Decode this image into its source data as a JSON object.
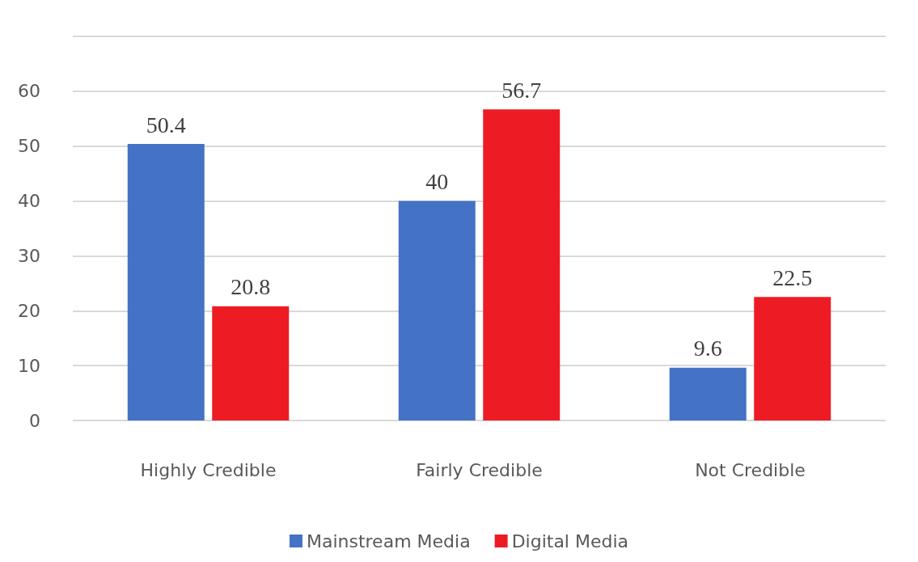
{
  "chart_data": {
    "type": "bar",
    "categories": [
      "Highly Credible",
      "Fairly Credible",
      "Not Credible"
    ],
    "series": [
      {
        "name": "Mainstream Media",
        "color": "#4472c4",
        "values": [
          50.4,
          40,
          9.6
        ]
      },
      {
        "name": "Digital Media",
        "color": "#ed1c24",
        "values": [
          20.8,
          56.7,
          22.5
        ]
      }
    ],
    "ylim": [
      0,
      70
    ],
    "yticks": [
      0,
      10,
      20,
      30,
      40,
      50,
      60,
      {
        "value": 70,
        "label": null
      }
    ],
    "grid": "y",
    "legend": "bottom",
    "data_labels": true
  }
}
